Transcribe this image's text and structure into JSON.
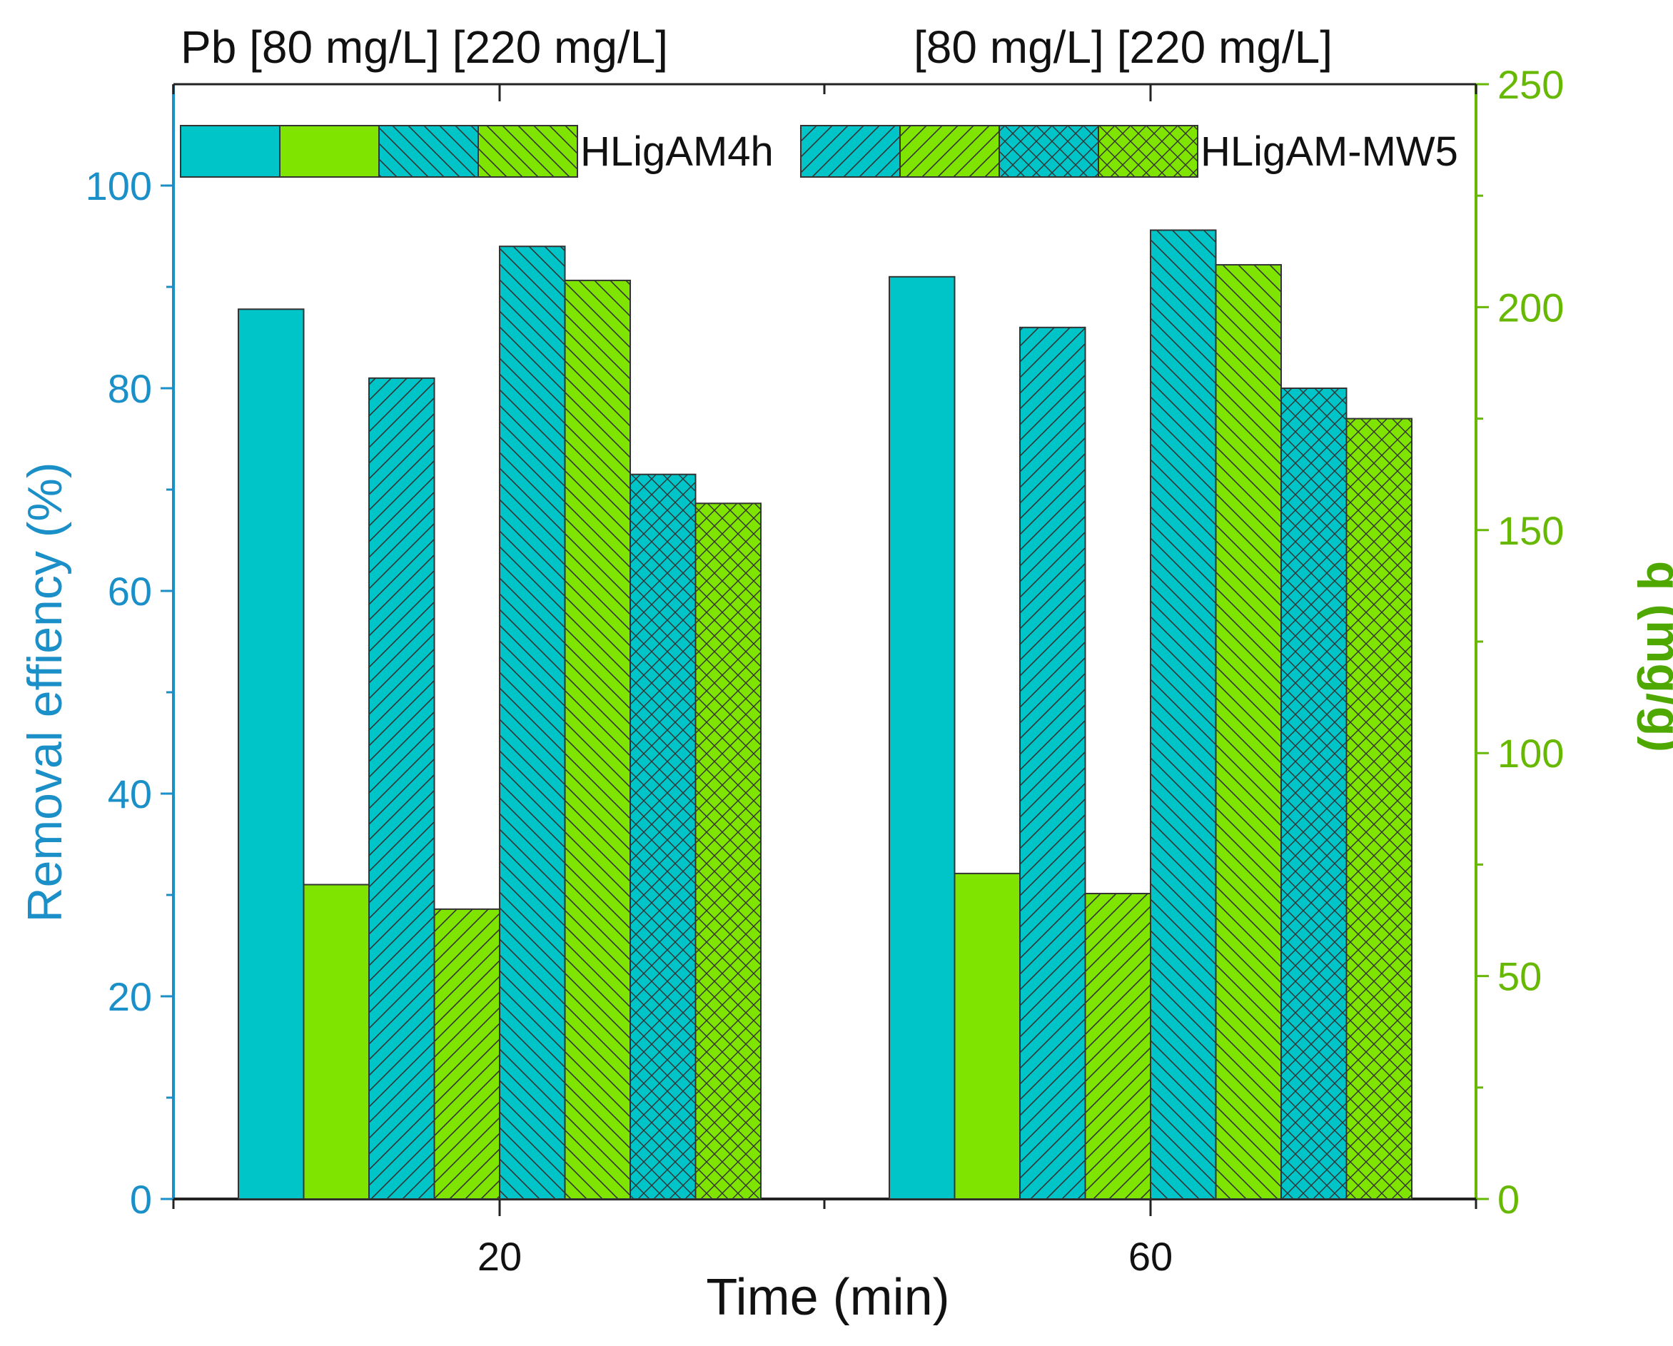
{
  "chart_data": {
    "type": "bar",
    "header_labels": [
      "Pb [80 mg/L]  [220 mg/L]",
      "[80 mg/L]  [220 mg/L]"
    ],
    "xlabel": "Time (min)",
    "ylabel_left": "Removal effiency (%)",
    "ylabel_right": "q (mg/g)",
    "categories": [
      "20",
      "60"
    ],
    "ylim_left": [
      0,
      110
    ],
    "ylim_right": [
      0,
      250
    ],
    "yticks_left": [
      "0",
      "20",
      "40",
      "60",
      "80",
      "100"
    ],
    "yticks_right": [
      "0",
      "50",
      "100",
      "150",
      "200",
      "250"
    ],
    "legend_groups": [
      "HLigAM4h",
      "HLigAM-MW5"
    ],
    "colors": {
      "teal": "#00C5C8",
      "green": "#7FE500",
      "left_axis": "#1A8FC8",
      "right_axis": "#66B800"
    },
    "series": [
      {
        "name": "HLigAM4h removal 80 mg/L",
        "axis": "left",
        "color": "teal",
        "pattern": "solid",
        "values": [
          87.8,
          91.0
        ]
      },
      {
        "name": "HLigAM4h q 80 mg/L",
        "axis": "right",
        "color": "green",
        "pattern": "solid",
        "values": [
          70.5,
          73.0
        ]
      },
      {
        "name": "HLigAM4h removal 220 mg/L",
        "axis": "left",
        "color": "teal",
        "pattern": "diag-fwd",
        "values": [
          81.0,
          86.0
        ]
      },
      {
        "name": "HLigAM4h q 220 mg/L",
        "axis": "right",
        "color": "green",
        "pattern": "diag-fwd",
        "values": [
          65.0,
          68.5
        ]
      },
      {
        "name": "HLigAM-MW5 removal 80 mg/L",
        "axis": "left",
        "color": "teal",
        "pattern": "diag-back",
        "values": [
          94.0,
          95.6
        ]
      },
      {
        "name": "HLigAM-MW5 q 80 mg/L",
        "axis": "right",
        "color": "green",
        "pattern": "diag-back",
        "values": [
          206.0,
          209.5
        ]
      },
      {
        "name": "HLigAM-MW5 removal 220 mg/L",
        "axis": "left",
        "color": "teal",
        "pattern": "cross",
        "values": [
          71.5,
          80.0
        ]
      },
      {
        "name": "HLigAM-MW5 q 220 mg/L",
        "axis": "right",
        "color": "green",
        "pattern": "cross",
        "values": [
          156.0,
          175.0
        ]
      }
    ],
    "legend_swatches": [
      {
        "group": 0,
        "color": "teal",
        "pattern": "solid"
      },
      {
        "group": 0,
        "color": "green",
        "pattern": "solid"
      },
      {
        "group": 0,
        "color": "teal",
        "pattern": "diag-back"
      },
      {
        "group": 0,
        "color": "green",
        "pattern": "diag-back"
      },
      {
        "group": 1,
        "color": "teal",
        "pattern": "diag-fwd"
      },
      {
        "group": 1,
        "color": "green",
        "pattern": "diag-fwd"
      },
      {
        "group": 1,
        "color": "teal",
        "pattern": "cross"
      },
      {
        "group": 1,
        "color": "green",
        "pattern": "cross"
      }
    ]
  }
}
